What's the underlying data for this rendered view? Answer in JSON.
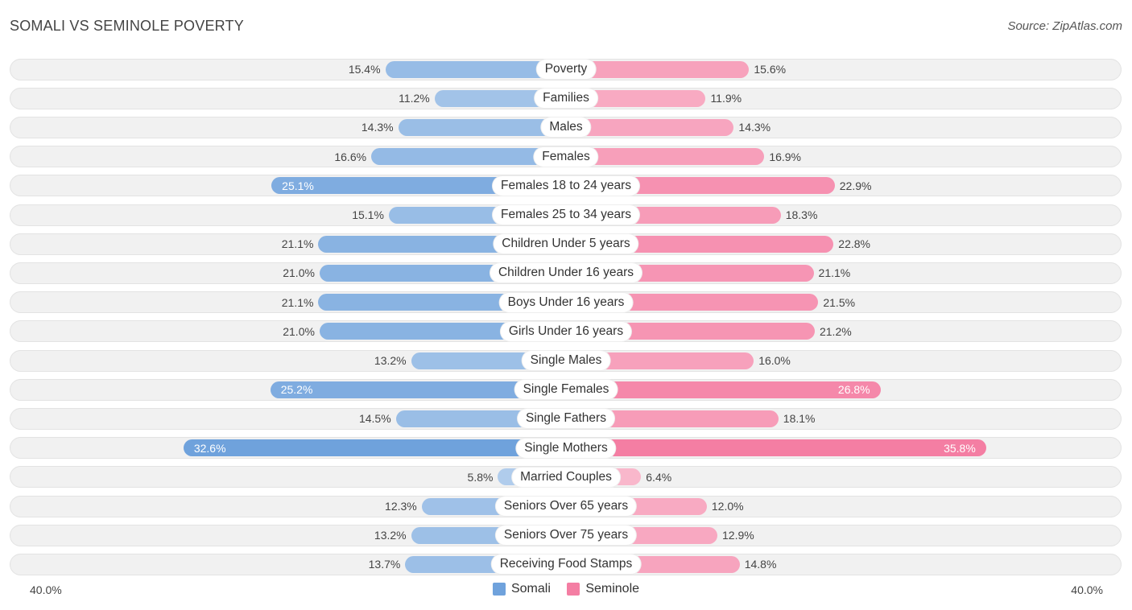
{
  "title": "SOMALI VS SEMINOLE POVERTY",
  "source": "Source: ZipAtlas.com",
  "colors": {
    "somali": "#6fa2dc",
    "seminole": "#f47ea3"
  },
  "chart_data": {
    "type": "bar",
    "orientation": "horizontal-diverging",
    "title": "SOMALI VS SEMINOLE POVERTY",
    "xlim": [
      -40,
      40
    ],
    "axis_labels": {
      "left": "40.0%",
      "right": "40.0%"
    },
    "legend": [
      "Somali",
      "Seminole"
    ],
    "categories": [
      "Poverty",
      "Families",
      "Males",
      "Females",
      "Females 18 to 24 years",
      "Females 25 to 34 years",
      "Children Under 5 years",
      "Children Under 16 years",
      "Boys Under 16 years",
      "Girls Under 16 years",
      "Single Males",
      "Single Females",
      "Single Fathers",
      "Single Mothers",
      "Married Couples",
      "Seniors Over 65 years",
      "Seniors Over 75 years",
      "Receiving Food Stamps"
    ],
    "series": [
      {
        "name": "Somali",
        "values": [
          15.4,
          11.2,
          14.3,
          16.6,
          25.1,
          15.1,
          21.1,
          21.0,
          21.1,
          21.0,
          13.2,
          25.2,
          14.5,
          32.6,
          5.8,
          12.3,
          13.2,
          13.7
        ]
      },
      {
        "name": "Seminole",
        "values": [
          15.6,
          11.9,
          14.3,
          16.9,
          22.9,
          18.3,
          22.8,
          21.1,
          21.5,
          21.2,
          16.0,
          26.8,
          18.1,
          35.8,
          6.4,
          12.0,
          12.9,
          14.8
        ]
      }
    ]
  }
}
